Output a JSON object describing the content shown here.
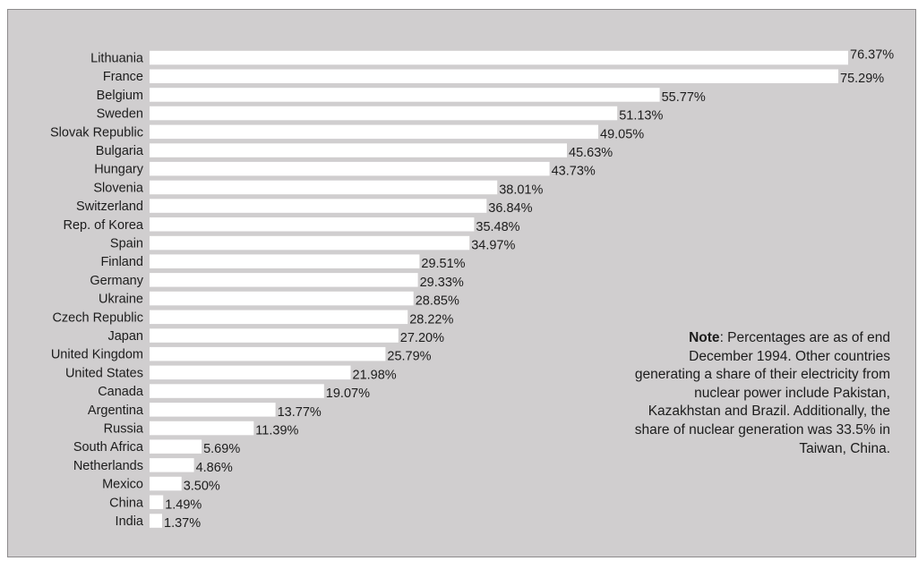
{
  "chart_data": {
    "type": "bar",
    "orientation": "horizontal",
    "categories": [
      "Lithuania",
      "France",
      "Belgium",
      "Sweden",
      "Slovak Republic",
      "Bulgaria",
      "Hungary",
      "Slovenia",
      "Switzerland",
      "Rep. of Korea",
      "Spain",
      "Finland",
      "Germany",
      "Ukraine",
      "Czech Republic",
      "Japan",
      "United Kingdom",
      "United States",
      "Canada",
      "Argentina",
      "Russia",
      "South Africa",
      "Netherlands",
      "Mexico",
      "China",
      "India"
    ],
    "values": [
      76.37,
      75.29,
      55.77,
      51.13,
      49.05,
      45.63,
      43.73,
      38.01,
      36.84,
      35.48,
      34.97,
      29.51,
      29.33,
      28.85,
      28.22,
      27.2,
      25.79,
      21.98,
      19.07,
      13.77,
      11.39,
      5.69,
      4.86,
      3.5,
      1.49,
      1.37
    ],
    "value_labels": [
      "76.37%",
      "75.29%",
      "55.77%",
      "51.13%",
      "49.05%",
      "45.63%",
      "43.73%",
      "38.01%",
      "36.84%",
      "35.48%",
      "34.97%",
      "29.51%",
      "29.33%",
      "28.85%",
      "28.22%",
      "27.20%",
      "25.79%",
      "21.98%",
      "19.07%",
      "13.77%",
      "11.39%",
      "5.69%",
      "4.86%",
      "3.50%",
      "1.49%",
      "1.37%"
    ],
    "unit": "%",
    "xlim": [
      0,
      76.37
    ],
    "grid": false,
    "colors": {
      "background": "#d0cecf",
      "bar": "#ffffff",
      "text": "#1c1c1c",
      "border": "#8d8b8c"
    }
  },
  "note": {
    "label": "Note",
    "text": ": Percentages are as of end December 1994. Other countries generating a share of their electricity from nuclear power include Pakistan, Kazakhstan and Brazil. Additionally, the share of nuclear generation was 33.5% in Taiwan, China."
  }
}
